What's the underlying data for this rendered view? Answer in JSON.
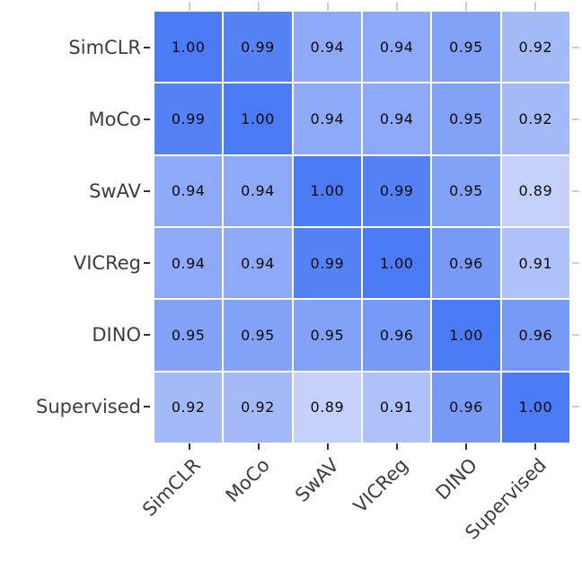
{
  "chart_data": {
    "type": "heatmap",
    "title": "",
    "rows": [
      "SimCLR",
      "MoCo",
      "SwAV",
      "VICReg",
      "DINO",
      "Supervised"
    ],
    "columns": [
      "SimCLR",
      "MoCo",
      "SwAV",
      "VICReg",
      "DINO",
      "Supervised"
    ],
    "matrix": [
      [
        1.0,
        0.99,
        0.94,
        0.94,
        0.95,
        0.92
      ],
      [
        0.99,
        1.0,
        0.94,
        0.94,
        0.95,
        0.92
      ],
      [
        0.94,
        0.94,
        1.0,
        0.99,
        0.95,
        0.89
      ],
      [
        0.94,
        0.94,
        0.99,
        1.0,
        0.96,
        0.91
      ],
      [
        0.95,
        0.95,
        0.95,
        0.96,
        1.0,
        0.96
      ],
      [
        0.92,
        0.92,
        0.89,
        0.91,
        0.96,
        1.0
      ]
    ],
    "value_decimals": 2,
    "annotations": true,
    "grid_line_color": "#ffffff",
    "colormap": {
      "min_value": 0.89,
      "max_value": 1.0,
      "min_color": "#C5D1FA",
      "max_color": "#4A7AF4"
    },
    "cell_text_color": "#0a0a0a",
    "tick_label_color": "#3d3d3d",
    "tick_mark_dark_color": "#333333",
    "tick_mark_light_color": "#cfcfcf",
    "x_label_rotation_deg": 45,
    "legend": "none",
    "background_color": "#ffffff"
  }
}
